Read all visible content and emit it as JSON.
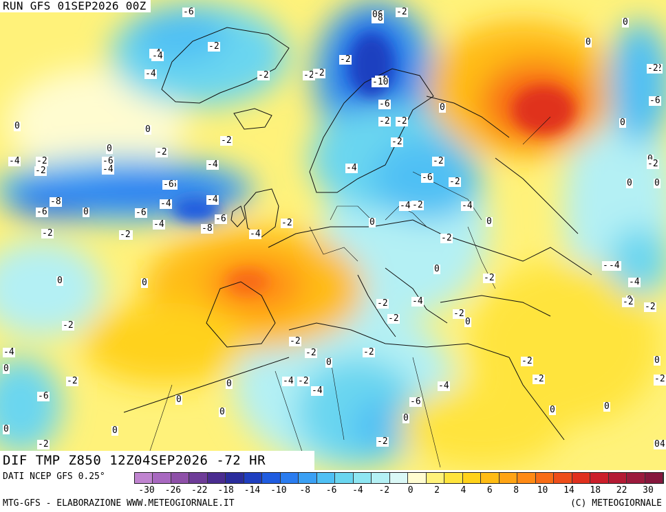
{
  "header": {
    "run_title": "RUN GFS 01SEP2026 00Z",
    "map_title": "DIF TMP Z850 12Z04SEP2026 -72 HR"
  },
  "legend": {
    "data_source": "DATI NCEP GFS 0.25°",
    "colors": [
      "#c084d0",
      "#a868c0",
      "#8e50a8",
      "#6e3c98",
      "#4a2c90",
      "#2a2c9c",
      "#1f3fc0",
      "#1f5ce0",
      "#2a7cf0",
      "#3aa0f4",
      "#4fc0f4",
      "#6ad6f0",
      "#8ee6f2",
      "#b4f0f4",
      "#daf8f6",
      "#fffcd0",
      "#fff27a",
      "#ffe43c",
      "#ffd21a",
      "#ffbc14",
      "#ffa414",
      "#ff8a14",
      "#f86c16",
      "#ee4e1a",
      "#e0301e",
      "#cc1e2a",
      "#b41a34",
      "#9c1a3c",
      "#86163c"
    ],
    "tick_labels": [
      "-30",
      "-26",
      "-22",
      "-18",
      "-14",
      "-10",
      "-8",
      "-6",
      "-4",
      "-2",
      "0",
      "2",
      "4",
      "6",
      "8",
      "10",
      "14",
      "18",
      "22",
      "30"
    ],
    "credits_left": "MTG-GFS - ELABORAZIONE WWW.METEOGIORNALE.IT",
    "credits_right": "(C) METEOGIORNALE"
  },
  "contour_labels": [
    "-2",
    "-6",
    "-2",
    "0",
    "-2",
    "-4",
    "-2",
    "-2",
    "-4",
    "-2",
    "0",
    "-8",
    "-6",
    "-4",
    "-2",
    "-2",
    "-4",
    "-6",
    "-10",
    "0",
    "-2",
    "0",
    "-2",
    "0",
    "-2",
    "-6",
    "-4",
    "-2",
    "-4",
    "0",
    "0",
    "-2",
    "-6",
    "-4",
    "-4",
    "-4",
    "-2",
    "-6",
    "-2",
    "-4",
    "-2",
    "-6",
    "-4",
    "-8",
    "-6",
    "0",
    "-2",
    "-6",
    "-2",
    "-4",
    "-2",
    "-4",
    "-8",
    "-6",
    "0",
    "-4",
    "-2",
    "-2",
    "-4",
    "-2",
    "-2",
    "0",
    "-2",
    "-4",
    "0",
    "-2",
    "-2",
    "-2",
    "0",
    "0",
    "-2",
    "-4",
    "0",
    "-2",
    "0",
    "-2",
    "-2",
    "-2",
    "-2",
    "0",
    "0",
    "-2",
    "-4",
    "0",
    "-2",
    "-2",
    "-4",
    "-2",
    "-4",
    "0",
    "0",
    "0",
    "-4",
    "-6",
    "0",
    "-6",
    "-2",
    "0",
    "0",
    "0",
    "0",
    "-2",
    "-2",
    "-4",
    "-6",
    "-2",
    "-4",
    "0",
    "-6",
    "-2",
    "0",
    "0",
    "0",
    "-2",
    "0",
    "-6",
    "0"
  ],
  "map_features": {
    "landmass_names": [
      "greenland",
      "iceland",
      "uk",
      "ireland",
      "scandinavia",
      "europe",
      "north-africa",
      "middle-east"
    ]
  }
}
